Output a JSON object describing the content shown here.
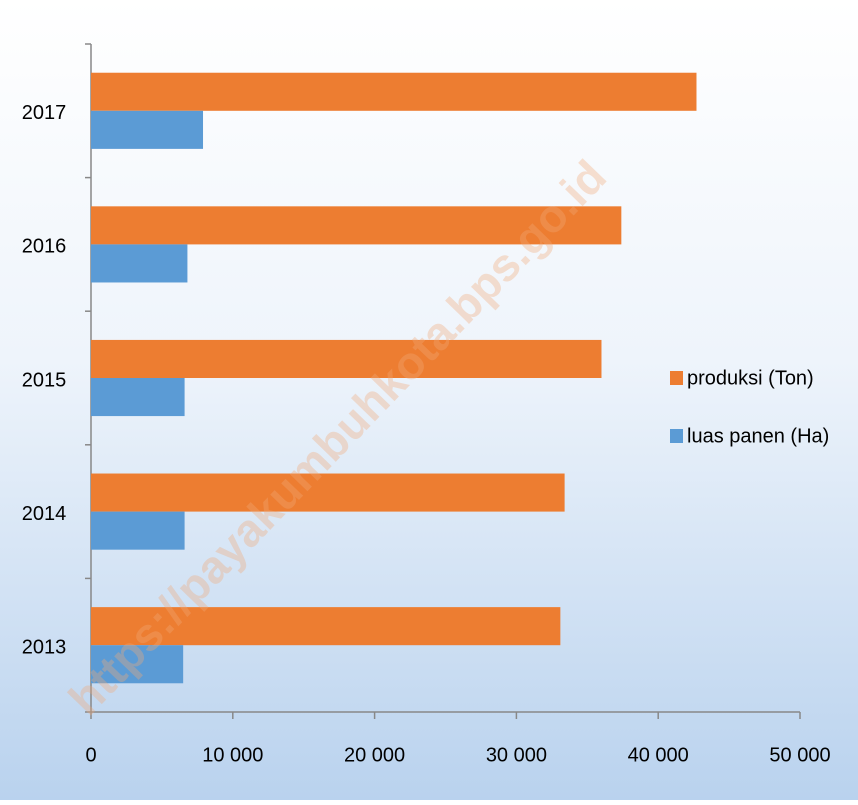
{
  "chart_data": {
    "type": "barh",
    "watermark": "https://payakumbuhkota.bps.go.id",
    "categories": [
      "2013",
      "2014",
      "2015",
      "2016",
      "2017"
    ],
    "series": [
      {
        "name": "produksi (Ton)",
        "color": "#ed7d31",
        "values": [
          33100,
          33400,
          36000,
          37400,
          42700
        ]
      },
      {
        "name": "luas panen (Ha)",
        "color": "#5b9bd5",
        "values": [
          6500,
          6600,
          6600,
          6800,
          7900
        ]
      }
    ],
    "xlim": [
      0,
      50000
    ],
    "xticks": [
      0,
      {
        "value": 10000,
        "label": "10 000"
      },
      {
        "value": 20000,
        "label": "20 000"
      },
      {
        "value": 30000,
        "label": "30 000"
      },
      {
        "value": 40000,
        "label": "40 000"
      },
      {
        "value": 50000,
        "label": "50 000"
      }
    ],
    "legend": "right"
  }
}
